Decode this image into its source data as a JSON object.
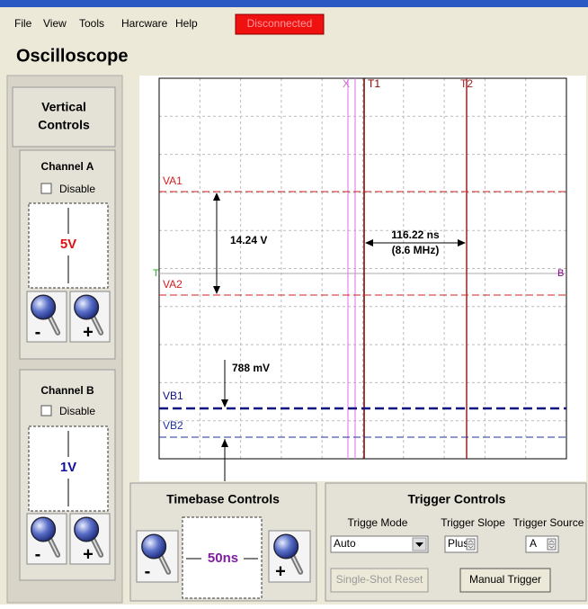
{
  "menu": [
    "File",
    "View",
    "Tools",
    "Harcware",
    "Help"
  ],
  "status": "Disconnected",
  "title": "Oscilloscope",
  "vertical_controls": {
    "title": [
      "Vertical",
      "Controls"
    ],
    "channel_a": {
      "title": "Channel A",
      "disable": "Disable",
      "scale": "5V",
      "zoom_out": "-",
      "zoom_in": "+"
    },
    "channel_b": {
      "title": "Channel B",
      "disable": "Disable",
      "scale": "1V",
      "zoom_out": "-",
      "zoom_in": "+"
    }
  },
  "scope": {
    "cursors": {
      "x": "X",
      "t1": "T1",
      "t2": "T2"
    },
    "levels": {
      "va1": "VA1",
      "va2": "VA2",
      "vb1": "VB1",
      "vb2": "VB2"
    },
    "trigger_marker": "T",
    "channel_marker": "B",
    "measurements": {
      "voltage_a": "14.24 V",
      "time": "116.22 ns",
      "frequency": "(8.6 MHz)",
      "voltage_b": "788 mV"
    }
  },
  "timebase": {
    "title": "Timebase Controls",
    "scale": "50ns",
    "zoom_out": "-",
    "zoom_in": "+"
  },
  "trigger": {
    "title": "Trigger Controls",
    "mode_label": "Trigge Mode",
    "slope_label": "Trigger Slope",
    "source_label": "Trigger Source",
    "mode": "Auto",
    "slope": "Plus",
    "source": "A",
    "buttons": [
      "Single-Shot Reset",
      "Manual Trigger"
    ]
  }
}
